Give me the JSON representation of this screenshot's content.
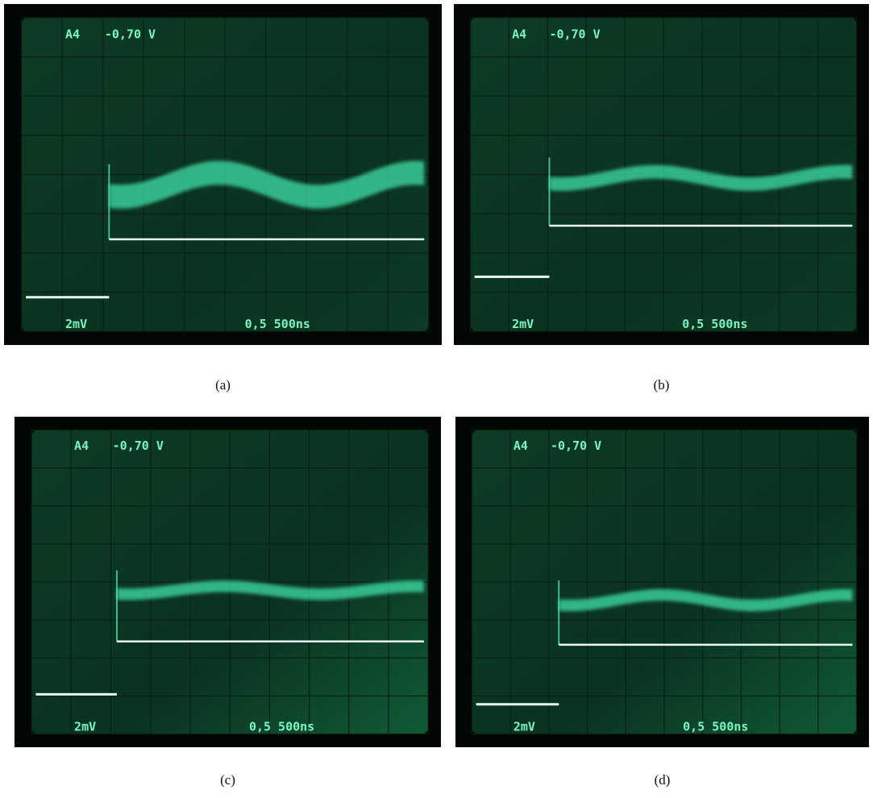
{
  "panels": [
    {
      "channel": "A4",
      "offset": "-0,70 V",
      "volts_div": "2mV",
      "time_div": "0,5 500ns",
      "caption": "(a)"
    },
    {
      "channel": "A4",
      "offset": "-0,70 V",
      "volts_div": "2mV",
      "time_div": "0,5 500ns",
      "caption": "(b)"
    },
    {
      "channel": "A4",
      "offset": "-0,70 V",
      "volts_div": "2mV",
      "time_div": "0,5 500ns",
      "caption": "(c)"
    },
    {
      "channel": "A4",
      "offset": "-0,70 V",
      "volts_div": "2mV",
      "time_div": "0,5 500ns",
      "caption": "(d)"
    }
  ]
}
